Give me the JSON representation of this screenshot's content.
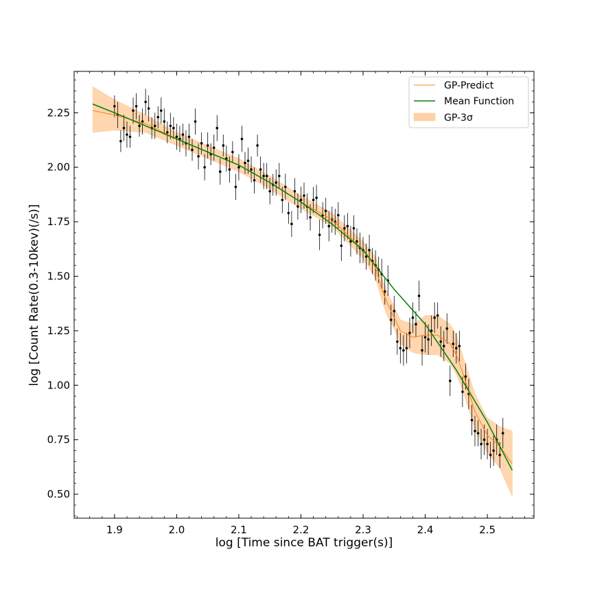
{
  "chart_data": {
    "type": "scatter",
    "title": "",
    "xlabel": "log [Time since BAT trigger(s)]",
    "ylabel": "log [Count Rate(0.3-10kev)(/s)]",
    "xlim": [
      1.835,
      2.575
    ],
    "ylim": [
      0.39,
      2.44
    ],
    "xticks": [
      1.9,
      2.0,
      2.1,
      2.2,
      2.3,
      2.4,
      2.5
    ],
    "xtick_labels": [
      "1.9",
      "2.0",
      "2.1",
      "2.2",
      "2.3",
      "2.4",
      "2.5"
    ],
    "yticks": [
      0.5,
      0.75,
      1.0,
      1.25,
      1.5,
      1.75,
      2.0,
      2.25
    ],
    "ytick_labels": [
      "0.50",
      "0.75",
      "1.00",
      "1.25",
      "1.50",
      "1.75",
      "2.00",
      "2.25"
    ],
    "grid": false,
    "legend_position": "top-right",
    "legend": [
      {
        "label": "GP-Predict",
        "symbol": "line",
        "color": "#ff7f0e"
      },
      {
        "label": "Mean Function",
        "symbol": "line",
        "color": "#008000"
      },
      {
        "label": "GP-3σ",
        "symbol": "patch",
        "color": "#ffd1a6"
      }
    ],
    "series": [
      {
        "name": "GP-Predict",
        "kind": "line",
        "color": "#ff7f0e",
        "x": [
          1.865,
          1.9,
          1.95,
          2.0,
          2.05,
          2.1,
          2.15,
          2.2,
          2.25,
          2.3,
          2.32,
          2.33,
          2.34,
          2.35,
          2.36,
          2.38,
          2.4,
          2.42,
          2.44,
          2.45,
          2.46,
          2.47,
          2.48,
          2.5,
          2.52,
          2.54
        ],
        "y": [
          2.26,
          2.24,
          2.2,
          2.13,
          2.07,
          2.01,
          1.93,
          1.84,
          1.76,
          1.62,
          1.54,
          1.44,
          1.37,
          1.31,
          1.25,
          1.22,
          1.23,
          1.23,
          1.19,
          1.14,
          1.06,
          0.97,
          0.88,
          0.77,
          0.72,
          0.64
        ]
      },
      {
        "name": "GP-3σ",
        "kind": "band",
        "color": "#ffd1a6",
        "x": [
          1.865,
          1.9,
          1.95,
          2.0,
          2.05,
          2.1,
          2.15,
          2.2,
          2.25,
          2.3,
          2.32,
          2.33,
          2.34,
          2.35,
          2.36,
          2.38,
          2.4,
          2.42,
          2.44,
          2.45,
          2.46,
          2.47,
          2.48,
          2.5,
          2.52,
          2.54
        ],
        "upper": [
          2.37,
          2.31,
          2.24,
          2.16,
          2.1,
          2.04,
          1.96,
          1.87,
          1.79,
          1.66,
          1.59,
          1.49,
          1.42,
          1.36,
          1.3,
          1.28,
          1.32,
          1.32,
          1.28,
          1.23,
          1.14,
          1.05,
          0.96,
          0.85,
          0.81,
          0.79
        ],
        "lower": [
          2.16,
          2.17,
          2.16,
          2.1,
          2.04,
          1.98,
          1.9,
          1.81,
          1.73,
          1.58,
          1.49,
          1.39,
          1.31,
          1.26,
          1.19,
          1.15,
          1.14,
          1.14,
          1.1,
          1.05,
          0.98,
          0.89,
          0.8,
          0.69,
          0.62,
          0.49
        ]
      },
      {
        "name": "Mean Function",
        "kind": "line",
        "color": "#008000",
        "x": [
          1.865,
          1.9,
          1.95,
          2.0,
          2.05,
          2.1,
          2.15,
          2.2,
          2.25,
          2.3,
          2.35,
          2.4,
          2.45,
          2.5,
          2.54
        ],
        "y": [
          2.29,
          2.25,
          2.19,
          2.13,
          2.07,
          2.01,
          1.93,
          1.84,
          1.74,
          1.62,
          1.44,
          1.28,
          1.07,
          0.83,
          0.61
        ]
      },
      {
        "name": "",
        "kind": "errorbar",
        "color": "#000000",
        "x": [
          1.9,
          1.905,
          1.91,
          1.915,
          1.92,
          1.925,
          1.93,
          1.935,
          1.94,
          1.945,
          1.95,
          1.955,
          1.96,
          1.965,
          1.97,
          1.975,
          1.98,
          1.985,
          1.99,
          1.995,
          2.0,
          2.005,
          2.01,
          2.015,
          2.02,
          2.025,
          2.03,
          2.035,
          2.04,
          2.045,
          2.05,
          2.055,
          2.06,
          2.065,
          2.07,
          2.075,
          2.08,
          2.085,
          2.09,
          2.095,
          2.1,
          2.105,
          2.11,
          2.115,
          2.12,
          2.125,
          2.13,
          2.135,
          2.14,
          2.145,
          2.15,
          2.155,
          2.16,
          2.165,
          2.17,
          2.175,
          2.18,
          2.185,
          2.19,
          2.195,
          2.2,
          2.205,
          2.21,
          2.215,
          2.22,
          2.225,
          2.23,
          2.235,
          2.24,
          2.245,
          2.25,
          2.255,
          2.26,
          2.265,
          2.27,
          2.275,
          2.28,
          2.285,
          2.29,
          2.295,
          2.3,
          2.305,
          2.31,
          2.315,
          2.32,
          2.325,
          2.33,
          2.335,
          2.34,
          2.345,
          2.35,
          2.355,
          2.36,
          2.365,
          2.37,
          2.375,
          2.38,
          2.385,
          2.39,
          2.395,
          2.4,
          2.405,
          2.41,
          2.415,
          2.42,
          2.425,
          2.43,
          2.435,
          2.44,
          2.445,
          2.45,
          2.455,
          2.46,
          2.465,
          2.47,
          2.475,
          2.48,
          2.485,
          2.49,
          2.495,
          2.5,
          2.505,
          2.51,
          2.515,
          2.52,
          2.525
        ],
        "y": [
          2.28,
          2.24,
          2.12,
          2.18,
          2.15,
          2.14,
          2.26,
          2.28,
          2.19,
          2.21,
          2.3,
          2.27,
          2.18,
          2.19,
          2.23,
          2.26,
          2.21,
          2.16,
          2.19,
          2.18,
          2.14,
          2.13,
          2.15,
          2.11,
          2.14,
          2.08,
          2.21,
          2.05,
          2.11,
          2.0,
          2.1,
          2.06,
          2.09,
          2.18,
          1.98,
          2.1,
          2.04,
          1.99,
          2.07,
          1.91,
          2.0,
          2.13,
          2.02,
          2.03,
          1.99,
          1.94,
          2.1,
          1.99,
          1.96,
          1.96,
          1.89,
          1.92,
          1.93,
          1.96,
          1.85,
          1.91,
          1.79,
          1.74,
          1.89,
          1.82,
          1.85,
          1.87,
          1.82,
          1.77,
          1.85,
          1.86,
          1.69,
          1.78,
          1.8,
          1.73,
          1.76,
          1.75,
          1.78,
          1.64,
          1.72,
          1.73,
          1.66,
          1.72,
          1.66,
          1.63,
          1.62,
          1.59,
          1.62,
          1.57,
          1.55,
          1.53,
          1.51,
          1.43,
          1.48,
          1.3,
          1.34,
          1.2,
          1.17,
          1.16,
          1.17,
          1.24,
          1.31,
          1.28,
          1.41,
          1.16,
          1.22,
          1.21,
          1.25,
          1.31,
          1.32,
          1.2,
          1.18,
          1.26,
          1.02,
          1.19,
          1.17,
          1.18,
          0.97,
          1.04,
          0.96,
          0.84,
          0.79,
          0.78,
          0.73,
          0.75,
          0.73,
          0.68,
          0.7,
          0.75,
          0.68,
          0.78
        ],
        "yerr": [
          0.05,
          0.06,
          0.05,
          0.06,
          0.06,
          0.05,
          0.06,
          0.06,
          0.05,
          0.06,
          0.06,
          0.06,
          0.05,
          0.06,
          0.05,
          0.06,
          0.06,
          0.05,
          0.06,
          0.05,
          0.06,
          0.06,
          0.05,
          0.06,
          0.06,
          0.05,
          0.06,
          0.06,
          0.05,
          0.06,
          0.06,
          0.05,
          0.06,
          0.06,
          0.06,
          0.05,
          0.06,
          0.06,
          0.05,
          0.06,
          0.06,
          0.06,
          0.05,
          0.06,
          0.06,
          0.06,
          0.05,
          0.06,
          0.06,
          0.06,
          0.06,
          0.05,
          0.06,
          0.06,
          0.06,
          0.06,
          0.05,
          0.06,
          0.06,
          0.06,
          0.06,
          0.06,
          0.06,
          0.06,
          0.06,
          0.06,
          0.07,
          0.06,
          0.06,
          0.07,
          0.06,
          0.06,
          0.06,
          0.07,
          0.06,
          0.06,
          0.07,
          0.06,
          0.06,
          0.07,
          0.06,
          0.06,
          0.07,
          0.06,
          0.07,
          0.06,
          0.07,
          0.06,
          0.07,
          0.07,
          0.07,
          0.06,
          0.07,
          0.07,
          0.07,
          0.07,
          0.07,
          0.06,
          0.07,
          0.07,
          0.07,
          0.07,
          0.07,
          0.07,
          0.06,
          0.07,
          0.07,
          0.07,
          0.07,
          0.06,
          0.07,
          0.07,
          0.07,
          0.06,
          0.07,
          0.07,
          0.07,
          0.06,
          0.07,
          0.07,
          0.07,
          0.06,
          0.07,
          0.07,
          0.06,
          0.07
        ]
      }
    ]
  }
}
